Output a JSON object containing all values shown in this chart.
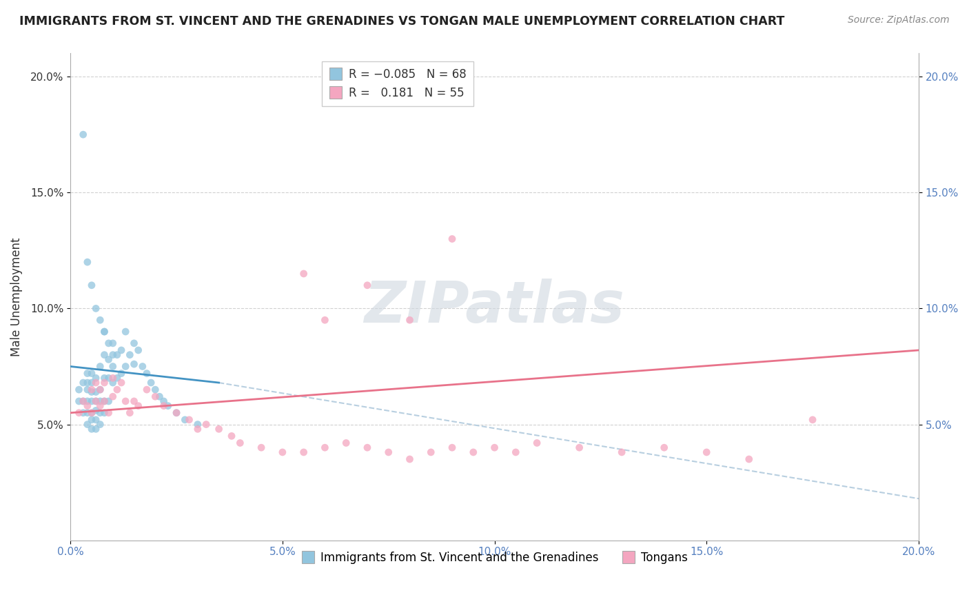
{
  "title": "IMMIGRANTS FROM ST. VINCENT AND THE GRENADINES VS TONGAN MALE UNEMPLOYMENT CORRELATION CHART",
  "source_text": "Source: ZipAtlas.com",
  "ylabel": "Male Unemployment",
  "xlim": [
    0.0,
    0.2
  ],
  "ylim": [
    0.0,
    0.21
  ],
  "xtick_labels": [
    "0.0%",
    "",
    "",
    "",
    "5.0%",
    "",
    "",
    "",
    "",
    "10.0%",
    "",
    "",
    "",
    "",
    "15.0%",
    "",
    "",
    "",
    "",
    "20.0%"
  ],
  "ytick_labels": [
    "5.0%",
    "10.0%",
    "15.0%",
    "20.0%"
  ],
  "ytick_vals": [
    0.05,
    0.1,
    0.15,
    0.2
  ],
  "color_blue": "#92c5de",
  "color_pink": "#f4a6c0",
  "color_line_blue": "#4393c3",
  "color_line_pink": "#e8728a",
  "color_dash": "#b8cfe0",
  "watermark": "ZIPatlas",
  "legend_label1": "Immigrants from St. Vincent and the Grenadines",
  "legend_label2": "Tongans",
  "blue_scatter_x": [
    0.002,
    0.002,
    0.003,
    0.003,
    0.003,
    0.004,
    0.004,
    0.004,
    0.004,
    0.004,
    0.004,
    0.005,
    0.005,
    0.005,
    0.005,
    0.005,
    0.005,
    0.005,
    0.006,
    0.006,
    0.006,
    0.006,
    0.006,
    0.006,
    0.007,
    0.007,
    0.007,
    0.007,
    0.007,
    0.008,
    0.008,
    0.008,
    0.008,
    0.008,
    0.009,
    0.009,
    0.009,
    0.01,
    0.01,
    0.01,
    0.011,
    0.011,
    0.012,
    0.012,
    0.013,
    0.013,
    0.014,
    0.015,
    0.015,
    0.016,
    0.017,
    0.018,
    0.019,
    0.02,
    0.021,
    0.022,
    0.023,
    0.025,
    0.027,
    0.03,
    0.003,
    0.004,
    0.005,
    0.006,
    0.007,
    0.008,
    0.009,
    0.01
  ],
  "blue_scatter_y": [
    0.065,
    0.06,
    0.055,
    0.06,
    0.068,
    0.05,
    0.055,
    0.06,
    0.065,
    0.068,
    0.072,
    0.048,
    0.052,
    0.055,
    0.06,
    0.064,
    0.068,
    0.072,
    0.048,
    0.052,
    0.056,
    0.06,
    0.064,
    0.07,
    0.05,
    0.055,
    0.06,
    0.065,
    0.075,
    0.055,
    0.06,
    0.07,
    0.08,
    0.09,
    0.06,
    0.07,
    0.078,
    0.068,
    0.075,
    0.085,
    0.07,
    0.08,
    0.072,
    0.082,
    0.075,
    0.09,
    0.08,
    0.076,
    0.085,
    0.082,
    0.075,
    0.072,
    0.068,
    0.065,
    0.062,
    0.06,
    0.058,
    0.055,
    0.052,
    0.05,
    0.175,
    0.12,
    0.11,
    0.1,
    0.095,
    0.09,
    0.085,
    0.08
  ],
  "pink_scatter_x": [
    0.002,
    0.003,
    0.004,
    0.005,
    0.005,
    0.006,
    0.006,
    0.007,
    0.007,
    0.008,
    0.008,
    0.009,
    0.01,
    0.01,
    0.011,
    0.012,
    0.013,
    0.014,
    0.015,
    0.016,
    0.018,
    0.02,
    0.022,
    0.025,
    0.028,
    0.03,
    0.032,
    0.035,
    0.038,
    0.04,
    0.045,
    0.05,
    0.055,
    0.06,
    0.065,
    0.07,
    0.075,
    0.08,
    0.085,
    0.09,
    0.095,
    0.1,
    0.105,
    0.11,
    0.12,
    0.13,
    0.14,
    0.15,
    0.16,
    0.175,
    0.055,
    0.06,
    0.07,
    0.08,
    0.09
  ],
  "pink_scatter_y": [
    0.055,
    0.06,
    0.058,
    0.055,
    0.065,
    0.06,
    0.068,
    0.058,
    0.065,
    0.06,
    0.068,
    0.055,
    0.062,
    0.07,
    0.065,
    0.068,
    0.06,
    0.055,
    0.06,
    0.058,
    0.065,
    0.062,
    0.058,
    0.055,
    0.052,
    0.048,
    0.05,
    0.048,
    0.045,
    0.042,
    0.04,
    0.038,
    0.038,
    0.04,
    0.042,
    0.04,
    0.038,
    0.035,
    0.038,
    0.04,
    0.038,
    0.04,
    0.038,
    0.042,
    0.04,
    0.038,
    0.04,
    0.038,
    0.035,
    0.052,
    0.115,
    0.095,
    0.11,
    0.095,
    0.13
  ]
}
